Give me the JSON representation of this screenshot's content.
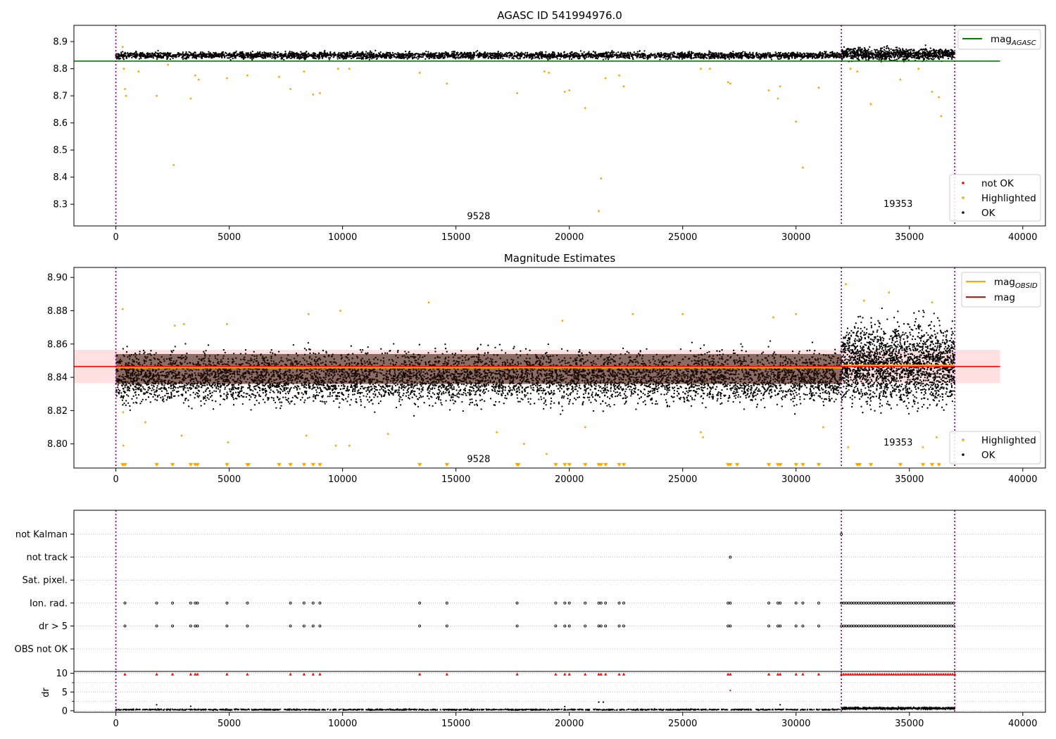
{
  "chart_data": [
    {
      "type": "scatter",
      "title": "AGASC ID 541994976.0",
      "xlabel": "",
      "ylabel": "",
      "xlim": [
        -1850,
        41000
      ],
      "ylim": [
        8.22,
        8.96
      ],
      "xticks": [
        0,
        5000,
        10000,
        15000,
        20000,
        25000,
        30000,
        35000,
        40000
      ],
      "xtick_labels": [
        "0",
        "5000",
        "10000",
        "15000",
        "20000",
        "25000",
        "30000",
        "35000",
        "40000"
      ],
      "yticks": [
        8.3,
        8.4,
        8.5,
        8.6,
        8.7,
        8.8,
        8.9
      ],
      "ytick_labels": [
        "8.3",
        "8.4",
        "8.5",
        "8.6",
        "8.7",
        "8.8",
        "8.9"
      ],
      "grid": false,
      "obsid_boundaries": [
        0,
        32000,
        37000
      ],
      "obsid_labels": [
        {
          "text": "9528",
          "x": 16000,
          "y": 8.245
        },
        {
          "text": "19353",
          "x": 34500,
          "y": 8.29
        }
      ],
      "lines": [
        {
          "name": "mag_AGASC",
          "label_main": "mag",
          "label_sub": "AGASC",
          "y": 8.828,
          "x_range": [
            -1850,
            39000
          ],
          "color": "#008000"
        }
      ],
      "series": [
        {
          "name": "not OK",
          "color": "#ff0000",
          "points": []
        },
        {
          "name": "Highlighted",
          "color": "#ffa500",
          "points": [
            [
              300,
              8.88
            ],
            [
              350,
              8.8
            ],
            [
              400,
              8.725
            ],
            [
              450,
              8.7
            ],
            [
              1000,
              8.79
            ],
            [
              1800,
              8.7
            ],
            [
              2300,
              8.815
            ],
            [
              2550,
              8.445
            ],
            [
              3300,
              8.69
            ],
            [
              3500,
              8.775
            ],
            [
              3650,
              8.76
            ],
            [
              4900,
              8.765
            ],
            [
              5800,
              8.775
            ],
            [
              7200,
              8.77
            ],
            [
              7700,
              8.725
            ],
            [
              8300,
              8.79
            ],
            [
              8700,
              8.705
            ],
            [
              9000,
              8.71
            ],
            [
              9800,
              8.8
            ],
            [
              10300,
              8.8
            ],
            [
              13400,
              8.785
            ],
            [
              14600,
              8.745
            ],
            [
              17700,
              8.71
            ],
            [
              18900,
              8.79
            ],
            [
              19100,
              8.785
            ],
            [
              19800,
              8.715
            ],
            [
              20000,
              8.72
            ],
            [
              20700,
              8.655
            ],
            [
              21300,
              8.275
            ],
            [
              21400,
              8.395
            ],
            [
              21600,
              8.765
            ],
            [
              22200,
              8.775
            ],
            [
              22400,
              8.735
            ],
            [
              25800,
              8.8
            ],
            [
              26200,
              8.8
            ],
            [
              27000,
              8.75
            ],
            [
              27100,
              8.745
            ],
            [
              28800,
              8.72
            ],
            [
              29200,
              8.69
            ],
            [
              29300,
              8.735
            ],
            [
              30000,
              8.605
            ],
            [
              30300,
              8.435
            ],
            [
              31000,
              8.73
            ],
            [
              32400,
              8.8
            ],
            [
              32700,
              8.79
            ],
            [
              33300,
              8.67
            ],
            [
              34600,
              8.76
            ],
            [
              35400,
              8.8
            ],
            [
              36000,
              8.715
            ],
            [
              36300,
              8.695
            ],
            [
              36400,
              8.625
            ]
          ]
        },
        {
          "name": "OK",
          "color": "#000000",
          "band": [
            {
              "x_range": [
                0,
                32000
              ],
              "y_range": [
                8.826,
                8.872
              ],
              "n": 3500
            },
            {
              "x_range": [
                32000,
                37000
              ],
              "y_range": [
                8.812,
                8.895
              ],
              "n": 900
            }
          ]
        }
      ],
      "legends": [
        {
          "position": "upper-right",
          "entries": [
            "mag_AGASC"
          ]
        },
        {
          "position": "lower-right",
          "entries": [
            "not OK",
            "Highlighted",
            "OK"
          ]
        }
      ]
    },
    {
      "type": "scatter",
      "title": "Magnitude Estimates",
      "xlabel": "",
      "ylabel": "",
      "xlim": [
        -1850,
        41000
      ],
      "ylim": [
        8.7855,
        8.906
      ],
      "xticks": [
        0,
        5000,
        10000,
        15000,
        20000,
        25000,
        30000,
        35000,
        40000
      ],
      "xtick_labels": [
        "0",
        "5000",
        "10000",
        "15000",
        "20000",
        "25000",
        "30000",
        "35000",
        "40000"
      ],
      "yticks": [
        8.8,
        8.82,
        8.84,
        8.86,
        8.88,
        8.9
      ],
      "ytick_labels": [
        "8.80",
        "8.82",
        "8.84",
        "8.86",
        "8.88",
        "8.90"
      ],
      "grid": false,
      "obsid_boundaries": [
        0,
        32000,
        37000
      ],
      "obsid_labels": [
        {
          "text": "9528",
          "x": 16000,
          "y": 8.789
        },
        {
          "text": "19353",
          "x": 34500,
          "y": 8.799
        }
      ],
      "bands": [
        {
          "y_range": [
            8.8365,
            8.8565
          ],
          "x_range": [
            -1850,
            39000
          ],
          "color": "#ff0000",
          "opacity": 0.12
        }
      ],
      "lines": [
        {
          "name": "mag",
          "label_main": "mag",
          "y": 8.8465,
          "x_range": [
            -1850,
            39000
          ],
          "color": "#ff0000"
        },
        {
          "name": "mag_OBSID",
          "label_main": "mag",
          "label_sub": "OBSID",
          "segments": [
            {
              "x_range": [
                0,
                32000
              ],
              "y": 8.8458
            },
            {
              "x_range": [
                32000,
                37000
              ],
              "y": 8.8472
            }
          ],
          "color": "#ffa500"
        }
      ],
      "series": [
        {
          "name": "Highlighted",
          "color": "#ffa500",
          "points": [
            [
              300,
              8.881
            ],
            [
              320,
              8.819
            ],
            [
              330,
              8.799
            ],
            [
              1300,
              8.813
            ],
            [
              2600,
              8.871
            ],
            [
              3000,
              8.872
            ],
            [
              2900,
              8.805
            ],
            [
              4900,
              8.872
            ],
            [
              4950,
              8.801
            ],
            [
              8500,
              8.878
            ],
            [
              8400,
              8.805
            ],
            [
              9700,
              8.799
            ],
            [
              9900,
              8.88
            ],
            [
              10300,
              8.799
            ],
            [
              12000,
              8.806
            ],
            [
              13800,
              8.885
            ],
            [
              16800,
              8.807
            ],
            [
              18000,
              8.8
            ],
            [
              19000,
              8.794
            ],
            [
              19700,
              8.874
            ],
            [
              20700,
              8.81
            ],
            [
              22800,
              8.878
            ],
            [
              25000,
              8.878
            ],
            [
              25800,
              8.807
            ],
            [
              25900,
              8.804
            ],
            [
              29000,
              8.876
            ],
            [
              30000,
              8.878
            ],
            [
              31200,
              8.81
            ],
            [
              32200,
              8.896
            ],
            [
              32300,
              8.798
            ],
            [
              33000,
              8.886
            ],
            [
              34100,
              8.891
            ],
            [
              35600,
              8.798
            ],
            [
              36000,
              8.885
            ],
            [
              36200,
              8.804
            ]
          ]
        },
        {
          "name": "Highlighted (below range)",
          "color": "#ffa500",
          "marker": "triangle-down",
          "x": [
            300,
            400,
            1800,
            2500,
            3300,
            3500,
            3600,
            4900,
            5800,
            5850,
            7200,
            7700,
            8300,
            8700,
            9000,
            13400,
            14600,
            17700,
            17750,
            19400,
            19800,
            20000,
            20700,
            21300,
            21400,
            21600,
            22200,
            22400,
            27000,
            27100,
            27400,
            28800,
            29200,
            29300,
            30000,
            30300,
            31000,
            32700,
            32800,
            33300,
            34600,
            35600,
            36000,
            36300
          ]
        },
        {
          "name": "OK",
          "color": "#000000",
          "band": [
            {
              "x_range": [
                0,
                32000
              ],
              "y_range": [
                8.812,
                8.868
              ],
              "n": 7000
            },
            {
              "x_range": [
                32000,
                37000
              ],
              "y_range": [
                8.805,
                8.891
              ],
              "n": 2200
            }
          ]
        }
      ],
      "legends": [
        {
          "position": "upper-right",
          "entries": [
            "mag_OBSID",
            "mag"
          ]
        },
        {
          "position": "lower-right",
          "entries": [
            "Highlighted",
            "OK"
          ]
        }
      ]
    },
    {
      "type": "scatter",
      "title": "",
      "xlabel": "",
      "ylabel": "",
      "xlim": [
        -1850,
        41000
      ],
      "flag_categories": [
        "not Kalman",
        "not track",
        "Sat. pixel.",
        "Ion. rad.",
        "dr > 5",
        "OBS not OK"
      ],
      "grid": true,
      "obsid_boundaries": [
        0,
        32000,
        37000
      ],
      "flag_points": [
        {
          "category": "not track",
          "x": [
            27100
          ]
        },
        {
          "category": "not Kalman",
          "x": [
            32000
          ]
        },
        {
          "category": "Ion. rad.",
          "x": [
            400,
            1800,
            2500,
            3300,
            3500,
            3600,
            4900,
            5800,
            7700,
            8300,
            8700,
            9000,
            13400,
            14600,
            17700,
            19400,
            19800,
            20000,
            20700,
            21300,
            21400,
            21600,
            22200,
            22400,
            27000,
            27100,
            28800,
            29200,
            29300,
            30000,
            30300,
            31000
          ]
        },
        {
          "category": "dr > 5",
          "x": [
            400,
            1800,
            2500,
            3300,
            3500,
            3600,
            4900,
            5800,
            7700,
            8300,
            8700,
            9000,
            13400,
            14600,
            17700,
            19400,
            19800,
            20000,
            20700,
            21300,
            21400,
            21600,
            22200,
            22400,
            27000,
            27100,
            28800,
            29200,
            29300,
            30000,
            30300,
            31000
          ]
        },
        {
          "category": "Ion. rad. + dr > 5 (dense)",
          "x_range": [
            32000,
            37000
          ],
          "rows": [
            "Ion. rad.",
            "dr > 5"
          ]
        }
      ]
    },
    {
      "type": "scatter",
      "title": "",
      "xlabel": "",
      "ylabel": "dr",
      "xlim": [
        -1850,
        41000
      ],
      "ylim": [
        -0.4,
        10.5
      ],
      "yticks": [
        0,
        5,
        10
      ],
      "ytick_labels": [
        "0",
        "5",
        "10"
      ],
      "grid": true,
      "obsid_boundaries": [
        0,
        32000,
        37000
      ],
      "xticks": [
        0,
        5000,
        10000,
        15000,
        20000,
        25000,
        30000,
        35000,
        40000
      ],
      "xtick_labels": [
        "0",
        "5000",
        "10000",
        "15000",
        "20000",
        "25000",
        "30000",
        "35000",
        "40000"
      ],
      "series": [
        {
          "name": "dr clipped (red)",
          "color": "#ff0000",
          "marker": "triangle-up",
          "y": 9.8,
          "x": [
            400,
            1800,
            2500,
            3300,
            3500,
            3600,
            4900,
            5800,
            7700,
            8300,
            8700,
            9000,
            13400,
            14600,
            17700,
            19400,
            19800,
            20000,
            20700,
            21300,
            21400,
            21600,
            22200,
            22400,
            27000,
            27100,
            28800,
            29200,
            29300,
            30000,
            30300,
            31000
          ]
        },
        {
          "name": "dr red",
          "color": "#ff0000",
          "points": [
            [
              27100,
              5.4
            ]
          ]
        },
        {
          "name": "dr OK",
          "color": "#000000",
          "band": [
            {
              "x_range": [
                0,
                32000
              ],
              "y_range": [
                0,
                0.6
              ],
              "n": 1500
            },
            {
              "x_range": [
                32000,
                37000
              ],
              "y_range": [
                0.1,
                1.2
              ],
              "n": 700
            }
          ],
          "points": [
            [
              1800,
              1.6
            ],
            [
              3300,
              1.2
            ],
            [
              21300,
              2.3
            ],
            [
              21500,
              2.3
            ],
            [
              29300,
              1.6
            ],
            [
              19800,
              1.1
            ]
          ]
        },
        {
          "name": "dr clipped dense",
          "color": "#ff0000",
          "y": 9.8,
          "x_range": [
            32000,
            37000
          ]
        }
      ]
    }
  ]
}
